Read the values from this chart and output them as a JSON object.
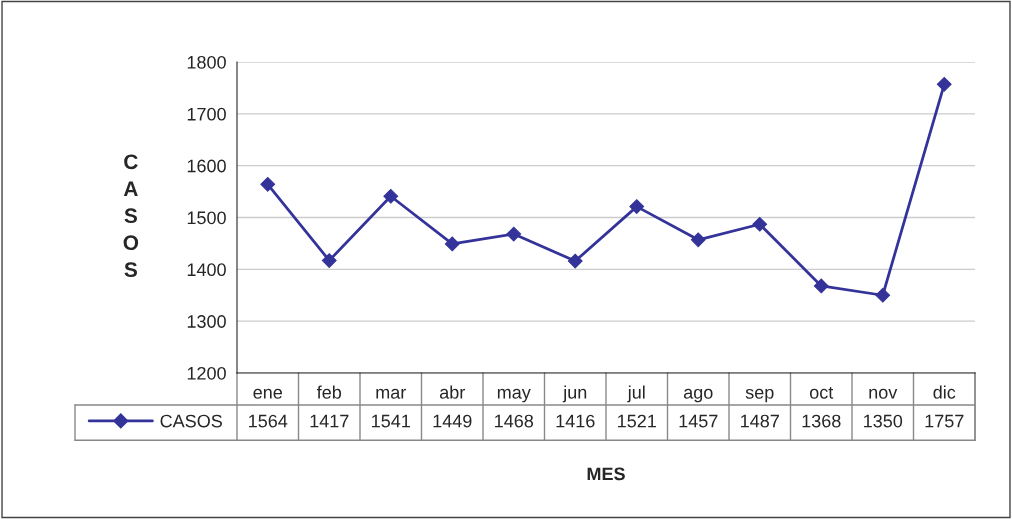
{
  "chart_data": {
    "type": "line",
    "xlabel": "MES",
    "ylabel": "CASOS",
    "categories": [
      "ene",
      "feb",
      "mar",
      "abr",
      "may",
      "jun",
      "jul",
      "ago",
      "sep",
      "oct",
      "nov",
      "dic"
    ],
    "series": [
      {
        "name": "CASOS",
        "color": "#333399",
        "values": [
          1564,
          1417,
          1541,
          1449,
          1468,
          1416,
          1521,
          1457,
          1487,
          1368,
          1350,
          1757
        ]
      }
    ],
    "ylim": [
      1200,
      1800
    ],
    "yticks": [
      1200,
      1300,
      1400,
      1500,
      1600,
      1700,
      1800
    ],
    "grid": "y",
    "marker": "diamond",
    "line_style": "solid",
    "legend": "bottom left",
    "data_labels": true
  }
}
